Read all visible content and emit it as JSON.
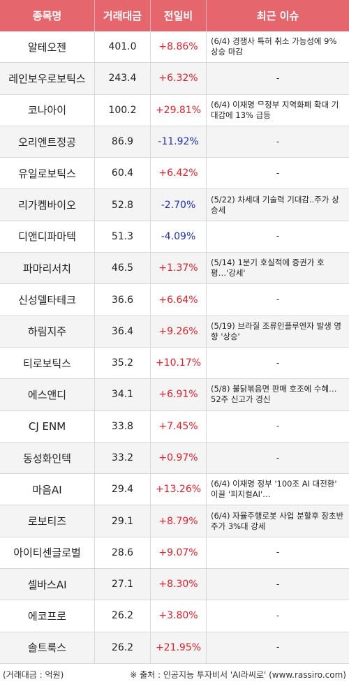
{
  "header": {
    "col_name": "종목명",
    "col_volume": "거래대금",
    "col_change": "전일비",
    "col_issue": "최근 이슈"
  },
  "rows": [
    {
      "name": "알테오젠",
      "volume": "401.0",
      "change": "+8.86%",
      "dir": "up",
      "issue": "(6/4) 경쟁사 특허 취소 가능성에 9% 상승 마감"
    },
    {
      "name": "레인보우로보틱스",
      "volume": "243.4",
      "change": "+6.32%",
      "dir": "up",
      "issue": "-"
    },
    {
      "name": "코나아이",
      "volume": "100.2",
      "change": "+29.81%",
      "dir": "up",
      "issue": "(6/4) 이재명 ᄆ정부 지역화폐 확대 기대감에 13% 급등"
    },
    {
      "name": "오리엔트정공",
      "volume": "86.9",
      "change": "-11.92%",
      "dir": "down",
      "issue": "-"
    },
    {
      "name": "유일로보틱스",
      "volume": "60.4",
      "change": "+6.42%",
      "dir": "up",
      "issue": "-"
    },
    {
      "name": "리가켐바이오",
      "volume": "52.8",
      "change": "-2.70%",
      "dir": "down",
      "issue": "(5/22) 차세대 기술력 기대감..주가 상승세"
    },
    {
      "name": "디앤디파마텍",
      "volume": "51.3",
      "change": "-4.09%",
      "dir": "down",
      "issue": "-"
    },
    {
      "name": "파마리서치",
      "volume": "46.5",
      "change": "+1.37%",
      "dir": "up",
      "issue": "(5/14) 1분기 호실적에 증권가 호평…'강세'"
    },
    {
      "name": "신성델타테크",
      "volume": "36.6",
      "change": "+6.64%",
      "dir": "up",
      "issue": "-"
    },
    {
      "name": "하림지주",
      "volume": "36.4",
      "change": "+9.26%",
      "dir": "up",
      "issue": "(5/19) 브라질 조류인플루엔자 발생 영향 '상승'"
    },
    {
      "name": "티로보틱스",
      "volume": "35.2",
      "change": "+10.17%",
      "dir": "up",
      "issue": "-"
    },
    {
      "name": "에스앤디",
      "volume": "34.1",
      "change": "+6.91%",
      "dir": "up",
      "issue": "(5/8) 불닭볶음면 판매 호조에 수혜…52주 신고가 경신"
    },
    {
      "name": "CJ ENM",
      "volume": "33.8",
      "change": "+7.45%",
      "dir": "up",
      "issue": "-"
    },
    {
      "name": "동성화인텍",
      "volume": "33.2",
      "change": "+0.97%",
      "dir": "up",
      "issue": "-"
    },
    {
      "name": "마음AI",
      "volume": "29.4",
      "change": "+13.26%",
      "dir": "up",
      "issue": "(6/4) 이재명 정부 '100조 AI 대전환' 이끌 '피지컬AI'…"
    },
    {
      "name": "로보티즈",
      "volume": "29.1",
      "change": "+8.79%",
      "dir": "up",
      "issue": "(6/4) 자율주행로봇 사업 분할후 장초반 주가 3%대 강세"
    },
    {
      "name": "아이티센글로벌",
      "volume": "28.6",
      "change": "+9.07%",
      "dir": "up",
      "issue": "-"
    },
    {
      "name": "셀바스AI",
      "volume": "27.1",
      "change": "+8.30%",
      "dir": "up",
      "issue": "-"
    },
    {
      "name": "에코프로",
      "volume": "26.2",
      "change": "+3.80%",
      "dir": "up",
      "issue": "-"
    },
    {
      "name": "솔트룩스",
      "volume": "26.2",
      "change": "+21.95%",
      "dir": "up",
      "issue": "-"
    }
  ],
  "footer": {
    "unit_note": "(거래대금 : 억원)",
    "source_note": "※ 출처 : 인공지능 투자비서 'AI라씨로' (www.rassiro.com)"
  },
  "colors": {
    "header_bg": "#e6666e",
    "up": "#e0212b",
    "down": "#1e2fb8"
  }
}
